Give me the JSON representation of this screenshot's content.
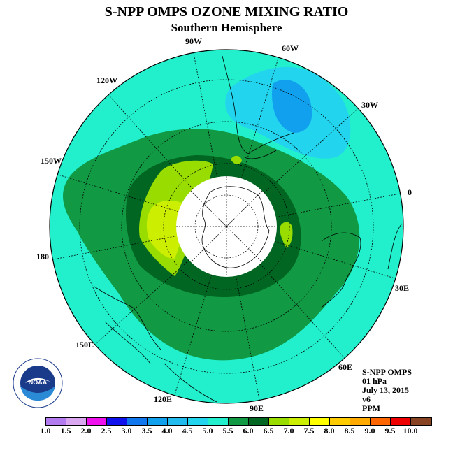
{
  "title": "S-NPP OMPS OZONE MIXING RATIO",
  "subtitle": "Southern Hemisphere",
  "longitude_labels": [
    "90W",
    "60W",
    "30W",
    "0",
    "30E",
    "60E",
    "90E",
    "120E",
    "150E",
    "180",
    "150W",
    "120W"
  ],
  "info": {
    "instrument": "S-NPP OMPS",
    "level": "01 hPa",
    "date": "July 13, 2015",
    "version": "v6",
    "units": "PPM"
  },
  "logo_text": "NOAA",
  "colorbar": {
    "ticks": [
      "1.0",
      "1.5",
      "2.0",
      "2.5",
      "3.0",
      "3.5",
      "4.0",
      "4.5",
      "5.0",
      "5.5",
      "6.0",
      "6.5",
      "7.0",
      "7.5",
      "8.0",
      "8.5",
      "9.0",
      "9.5",
      "10.0"
    ],
    "colors": [
      "#b27cf0",
      "#d9a6f0",
      "#ee11ee",
      "#1111ee",
      "#1177ee",
      "#11a0ee",
      "#22bbee",
      "#22d4ee",
      "#22f0cc",
      "#119944",
      "#006622",
      "#99dd00",
      "#ccee00",
      "#ffff00",
      "#ffcc00",
      "#ffaa00",
      "#ff6600",
      "#ee0000",
      "#884422"
    ]
  }
}
